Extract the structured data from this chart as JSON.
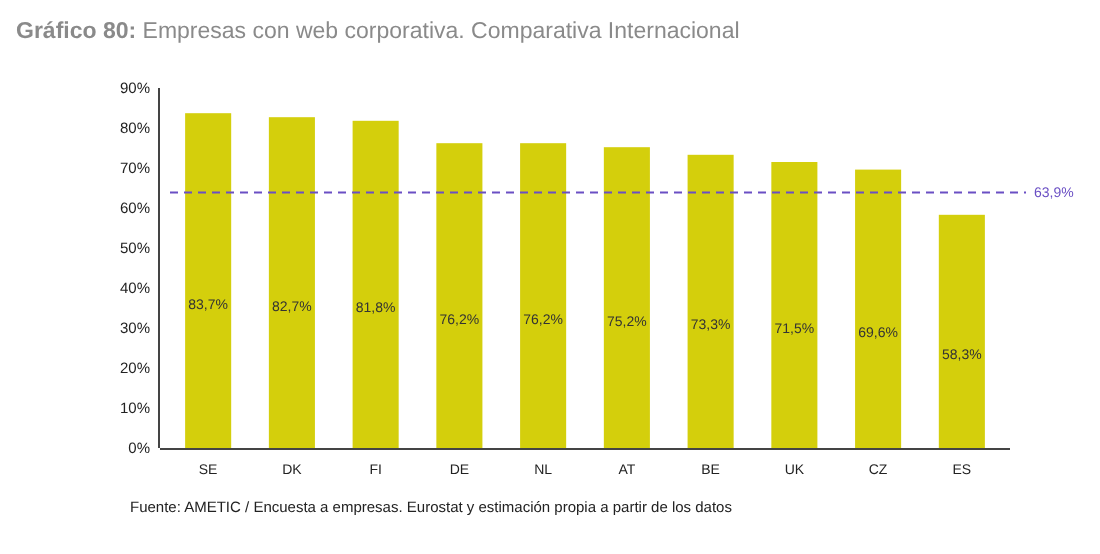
{
  "chart_data": {
    "type": "bar",
    "title": "Gráfico 80: Empresas con web corporativa. Comparativa Internacional",
    "categories": [
      "SE",
      "DK",
      "FI",
      "DE",
      "NL",
      "AT",
      "BE",
      "UK",
      "CZ",
      "ES"
    ],
    "values": [
      83.7,
      82.7,
      81.8,
      76.2,
      76.2,
      75.2,
      73.3,
      71.5,
      69.6,
      58.3
    ],
    "value_labels": [
      "83,7%",
      "82,7%",
      "81,8%",
      "76,2%",
      "76,2%",
      "75,2%",
      "73,3%",
      "71,5%",
      "69,6%",
      "58,3%"
    ],
    "color": "#d4cf0c",
    "ylim": [
      0,
      90
    ],
    "yticks": [
      {
        "value": 0,
        "label": "0%"
      },
      {
        "value": 10,
        "label": "10%"
      },
      {
        "value": 20,
        "label": "20%"
      },
      {
        "value": 30,
        "label": "30%"
      },
      {
        "value": 40,
        "label": "40%"
      },
      {
        "value": 50,
        "label": "50%"
      },
      {
        "value": 60,
        "label": "60%"
      },
      {
        "value": 70,
        "label": "70%"
      },
      {
        "value": 80,
        "label": "80%"
      },
      {
        "value": 90,
        "label": "90%"
      }
    ],
    "ref_lines": [
      {
        "axis": "y",
        "value": 63.9,
        "label": "63,9%",
        "color": "#6a4fc4",
        "line_style": "dashed"
      }
    ],
    "annotations": [
      "Fuente: AMETIC / Encuesta a empresas. Eurostat y estimación propia a partir de los datos"
    ],
    "grid": false
  }
}
